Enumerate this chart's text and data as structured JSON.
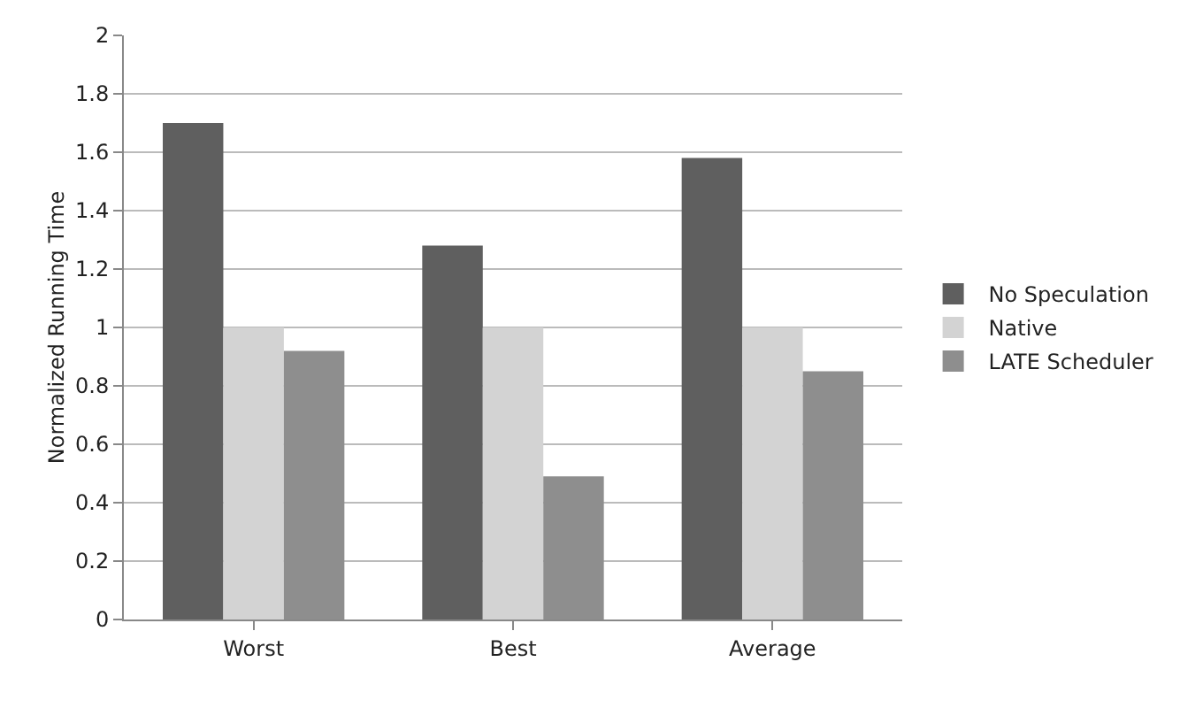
{
  "chart_data": {
    "type": "bar",
    "ylabel": "Normalized Running Time",
    "categories": [
      "Worst",
      "Best",
      "Average"
    ],
    "series": [
      {
        "name": "No Speculation",
        "color": "#5f5f5f",
        "values": [
          1.7,
          1.28,
          1.58
        ]
      },
      {
        "name": "Native",
        "color": "#d3d3d3",
        "values": [
          1.0,
          1.0,
          1.0
        ]
      },
      {
        "name": "LATE Scheduler",
        "color": "#8e8e8e",
        "values": [
          0.92,
          0.49,
          0.85
        ]
      }
    ],
    "ylim": [
      0,
      2
    ],
    "yticks": [
      0,
      0.2,
      0.4,
      0.6,
      0.8,
      1,
      1.2,
      1.4,
      1.6,
      1.8,
      2
    ],
    "grid": "y",
    "legend": "right"
  }
}
